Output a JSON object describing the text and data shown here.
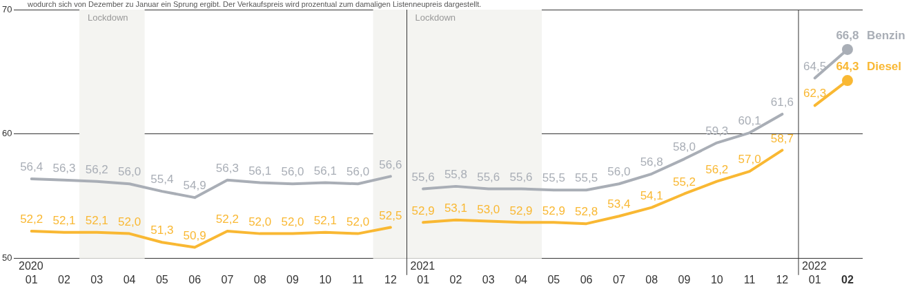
{
  "chart_data": {
    "type": "line",
    "subtitle": "wodurch sich von Dezember zu Januar ein Sprung ergibt. Der Verkaufspreis wird prozentual zum damaligen Listenneupreis dargestellt.",
    "x": [
      "2020-01",
      "2020-02",
      "2020-03",
      "2020-04",
      "2020-05",
      "2020-06",
      "2020-07",
      "2020-08",
      "2020-09",
      "2020-10",
      "2020-11",
      "2020-12",
      "2021-01",
      "2021-02",
      "2021-03",
      "2021-04",
      "2021-05",
      "2021-06",
      "2021-07",
      "2021-08",
      "2021-09",
      "2021-10",
      "2021-11",
      "2021-12",
      "2022-01",
      "2022-02"
    ],
    "series": [
      {
        "name": "Benzin",
        "color": "#a9aeb6",
        "values": [
          56.4,
          56.3,
          56.2,
          56.0,
          55.4,
          54.9,
          56.3,
          56.1,
          56.0,
          56.1,
          56.0,
          56.6,
          55.6,
          55.8,
          55.6,
          55.6,
          55.5,
          55.5,
          56.0,
          56.8,
          58.0,
          59.3,
          60.1,
          61.6,
          64.5,
          66.8
        ],
        "value_labels": [
          "56,4",
          "56,3",
          "56,2",
          "56,0",
          "55,4",
          "54,9",
          "56,3",
          "56,1",
          "56,0",
          "56,1",
          "56,0",
          "56,6",
          "55,6",
          "55,8",
          "55,6",
          "55,6",
          "55,5",
          "55,5",
          "56,0",
          "56,8",
          "58,0",
          "59,3",
          "60,1",
          "61,6",
          "64,5",
          "66,8"
        ]
      },
      {
        "name": "Diesel",
        "color": "#f9b833",
        "values": [
          52.2,
          52.1,
          52.1,
          52.0,
          51.3,
          50.9,
          52.2,
          52.0,
          52.0,
          52.1,
          52.0,
          52.5,
          52.9,
          53.1,
          53.0,
          52.9,
          52.9,
          52.8,
          53.4,
          54.1,
          55.2,
          56.2,
          57.0,
          58.7,
          62.3,
          64.3
        ],
        "value_labels": [
          "52,2",
          "52,1",
          "52,1",
          "52,0",
          "51,3",
          "50,9",
          "52,2",
          "52,0",
          "52,0",
          "52,1",
          "52,0",
          "52,5",
          "52,9",
          "53,1",
          "53,0",
          "52,9",
          "52,9",
          "52,8",
          "53,4",
          "54,1",
          "55,2",
          "56,2",
          "57,0",
          "58,7",
          "62,3",
          "64,3"
        ]
      }
    ],
    "xlim": [
      "2019-12-15",
      "2022-02-15"
    ],
    "xticks": [
      {
        "value": "2020-01",
        "label": "01"
      },
      {
        "value": "2020-02",
        "label": "02"
      },
      {
        "value": "2020-03",
        "label": "03"
      },
      {
        "value": "2020-04",
        "label": "04"
      },
      {
        "value": "2020-05",
        "label": "05"
      },
      {
        "value": "2020-06",
        "label": "06"
      },
      {
        "value": "2020-07",
        "label": "07"
      },
      {
        "value": "2020-08",
        "label": "08"
      },
      {
        "value": "2020-09",
        "label": "09"
      },
      {
        "value": "2020-10",
        "label": "10"
      },
      {
        "value": "2020-11",
        "label": "11"
      },
      {
        "value": "2020-12",
        "label": "12"
      },
      {
        "value": "2021-01",
        "label": "01"
      },
      {
        "value": "2021-02",
        "label": "02"
      },
      {
        "value": "2021-03",
        "label": "03"
      },
      {
        "value": "2021-04",
        "label": "04"
      },
      {
        "value": "2021-05",
        "label": "05"
      },
      {
        "value": "2021-06",
        "label": "06"
      },
      {
        "value": "2021-07",
        "label": "07"
      },
      {
        "value": "2021-08",
        "label": "08"
      },
      {
        "value": "2021-09",
        "label": "09"
      },
      {
        "value": "2021-10",
        "label": "10"
      },
      {
        "value": "2021-11",
        "label": "11"
      },
      {
        "value": "2021-12",
        "label": "12"
      },
      {
        "value": "2022-01",
        "label": "01"
      },
      {
        "value": "2022-02",
        "label": "02"
      }
    ],
    "ylim": [
      50,
      70
    ],
    "yticks": [
      50,
      60,
      70
    ],
    "grid": "y",
    "legend": false,
    "bands": [
      {
        "axis": "x",
        "from": "2020-02-15",
        "to": "2020-04-15",
        "label": "Lockdown",
        "color": "#f4f4f1"
      },
      {
        "axis": "x",
        "from": "2020-11-15",
        "to": "2021-04-20",
        "label": "Lockdown",
        "color": "#f4f4f1"
      }
    ],
    "annotations": [
      "2020",
      "2021",
      "2022"
    ]
  }
}
